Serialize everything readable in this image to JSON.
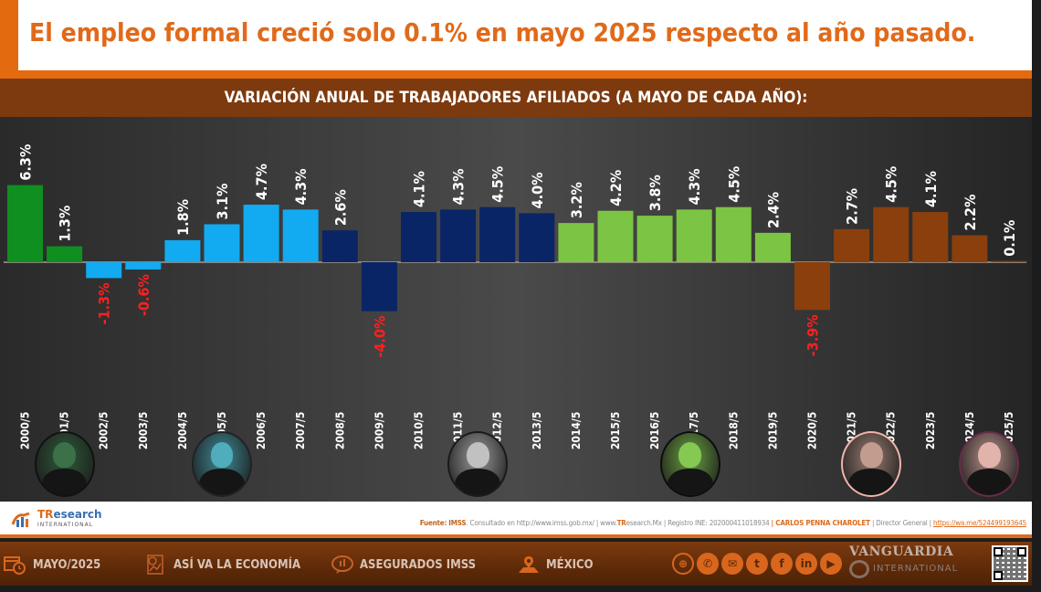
{
  "headline": "El empleo formal creció solo 0.1% en mayo 2025 respecto al año pasado.",
  "colors": {
    "accent_orange": "#e06a1a",
    "band_brown": "#7d3a0e",
    "negative_label": "#ff2020",
    "positive_label": "#ffffff"
  },
  "chart_data": {
    "type": "bar",
    "title": "VARIACIÓN ANUAL DE TRABAJADORES AFILIADOS (A MAYO DE CADA AÑO):",
    "xlabel": "",
    "ylabel": "",
    "unit": "%",
    "grid": false,
    "legend": "none",
    "ylim": [
      -5,
      7
    ],
    "categories": [
      "2000/5",
      "2001/5",
      "2002/5",
      "2003/5",
      "2004/5",
      "2005/5",
      "2006/5",
      "2007/5",
      "2008/5",
      "2009/5",
      "2010/5",
      "2011/5",
      "2012/5",
      "2013/5",
      "2014/5",
      "2015/5",
      "2016/5",
      "2017/5",
      "2018/5",
      "2019/5",
      "2020/5",
      "2021/5",
      "2022/5",
      "2023/5",
      "2024/5",
      "2025/5"
    ],
    "values": [
      6.3,
      1.3,
      -1.3,
      -0.6,
      1.8,
      3.1,
      4.7,
      4.3,
      2.6,
      -4.0,
      4.1,
      4.3,
      4.5,
      4.0,
      3.2,
      4.2,
      3.8,
      4.3,
      4.5,
      2.4,
      -3.9,
      2.7,
      4.5,
      4.1,
      2.2,
      0.1
    ],
    "labels": [
      "6.3%",
      "1.3%",
      "-1.3%",
      "-0.6%",
      "1.8%",
      "3.1%",
      "4.7%",
      "4.3%",
      "2.6%",
      "-4.0%",
      "4.1%",
      "4.3%",
      "4.5%",
      "4.0%",
      "3.2%",
      "4.2%",
      "3.8%",
      "4.3%",
      "4.5%",
      "2.4%",
      "-3.9%",
      "2.7%",
      "4.5%",
      "4.1%",
      "2.2%",
      "0.1%"
    ],
    "series_groups": [
      {
        "name": "group-1",
        "color": "#0f8f1f",
        "range": [
          0,
          1
        ]
      },
      {
        "name": "group-2",
        "color": "#12aaf0",
        "range": [
          2,
          7
        ]
      },
      {
        "name": "group-3",
        "color": "#0a2566",
        "range": [
          8,
          13
        ]
      },
      {
        "name": "group-4",
        "color": "#7cc444",
        "range": [
          14,
          19
        ]
      },
      {
        "name": "group-5",
        "color": "#8a3f0c",
        "range": [
          20,
          25
        ]
      }
    ]
  },
  "portraits": [
    {
      "name": "portrait-1",
      "tint": "#2f5a3a",
      "ring": "#111111",
      "at_category": 1
    },
    {
      "name": "portrait-2",
      "tint": "#3f8a96",
      "ring": "#222222",
      "at_category": 5
    },
    {
      "name": "portrait-3",
      "tint": "#9a9a9a",
      "ring": "#1a1a1a",
      "at_category": 11.5
    },
    {
      "name": "portrait-4",
      "tint": "#6aa042",
      "ring": "#0d0d0d",
      "at_category": 16.9
    },
    {
      "name": "portrait-5",
      "tint": "#9a7d72",
      "ring": "#f0b5a8",
      "at_category": 21.5
    },
    {
      "name": "portrait-6",
      "tint": "#b58f88",
      "ring": "#6a2a4a",
      "at_category": 24.5
    }
  ],
  "logo": {
    "brand_t": "TR",
    "brand_rest": "esearch",
    "sub": "INTERNATIONAL"
  },
  "source": {
    "label": "Fuente:",
    "org": "IMSS",
    "consulted": ". Consultado en http://www.imss.gob.mx/",
    "site_prefix": "| www.",
    "site_tr": "TR",
    "site_rest": "esearch.Mx",
    "registro": "| Registro INE: 202000411018934",
    "director_name": "| CARLOS PENNA CHAROLET",
    "director_title": "| Director General |",
    "link": "https://wa.me/524499193645"
  },
  "footer_nav": [
    {
      "label": "MAYO/2025",
      "icon": "calendar-clock-icon"
    },
    {
      "label": "ASÍ VA LA ECONOMÍA",
      "icon": "report-chart-icon"
    },
    {
      "label": "ASEGURADOS IMSS",
      "icon": "chat-chart-icon"
    },
    {
      "label": "MÉXICO",
      "icon": "map-pin-icon"
    }
  ],
  "socials": [
    {
      "icon": "globe-icon",
      "glyph": "⊕"
    },
    {
      "icon": "phone-icon",
      "glyph": "✆"
    },
    {
      "icon": "mail-icon",
      "glyph": "✉"
    },
    {
      "icon": "twitter-icon",
      "glyph": "t"
    },
    {
      "icon": "facebook-icon",
      "glyph": "f"
    },
    {
      "icon": "linkedin-icon",
      "glyph": "in"
    },
    {
      "icon": "youtube-icon",
      "glyph": "▶"
    }
  ],
  "watermark": "VANGUARDIA",
  "footer_brand": "INTERNATIONAL"
}
